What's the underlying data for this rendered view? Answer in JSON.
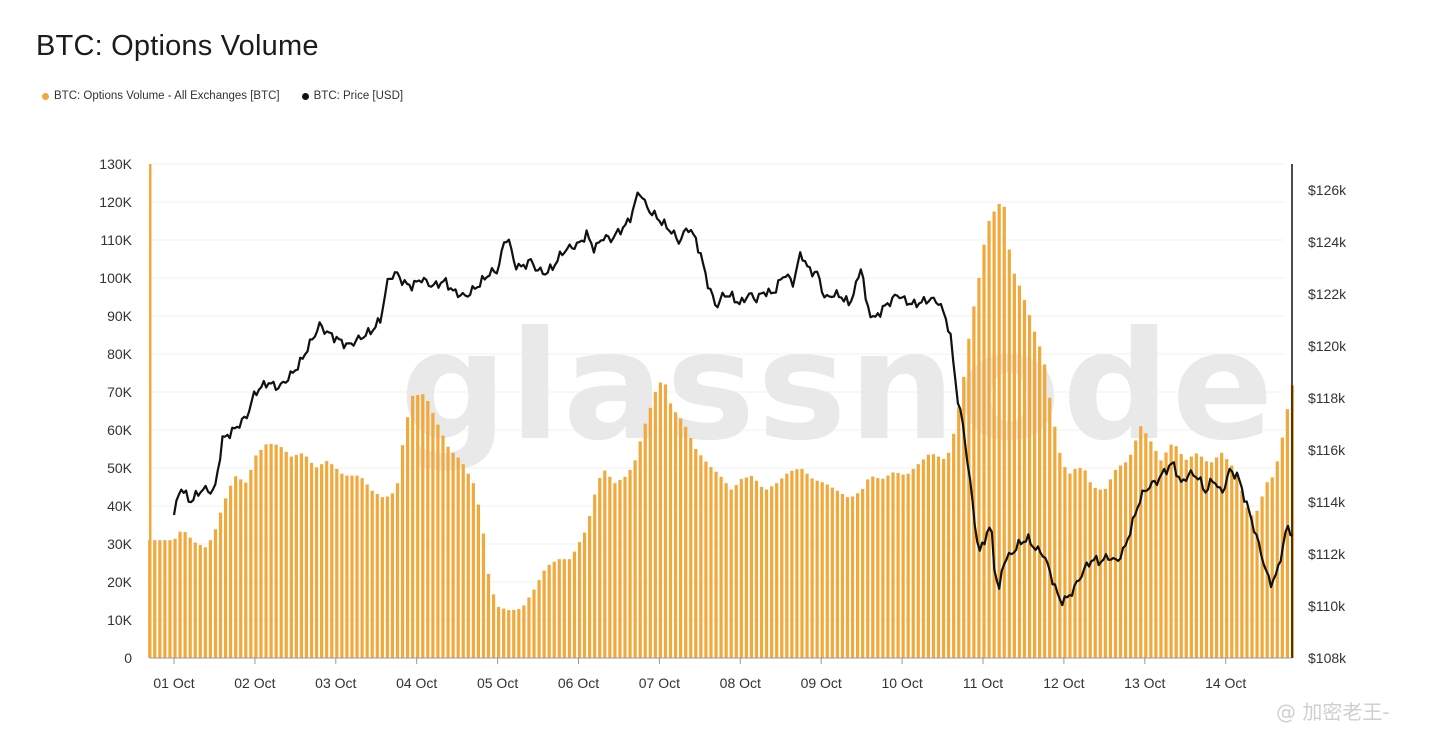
{
  "title": "BTC: Options Volume",
  "legend": [
    {
      "label": "BTC: Options Volume - All Exchanges [BTC]",
      "color": "#f0a93a"
    },
    {
      "label": "BTC: Price [USD]",
      "color": "#111111"
    }
  ],
  "watermark": "glassnode",
  "credit": "@ 加密老王-",
  "chart_data": {
    "type": "bar",
    "title": "BTC: Options Volume",
    "x_ticks": [
      "01 Oct",
      "02 Oct",
      "03 Oct",
      "04 Oct",
      "05 Oct",
      "06 Oct",
      "07 Oct",
      "08 Oct",
      "09 Oct",
      "10 Oct",
      "11 Oct",
      "12 Oct",
      "13 Oct",
      "14 Oct"
    ],
    "y_left_ticks": [
      "0",
      "10K",
      "20K",
      "30K",
      "40K",
      "50K",
      "60K",
      "70K",
      "80K",
      "90K",
      "100K",
      "110K",
      "120K",
      "130K"
    ],
    "y_right_ticks": [
      "$108k",
      "$110k",
      "$112k",
      "$114k",
      "$116k",
      "$118k",
      "$120k",
      "$122k",
      "$124k",
      "$126k"
    ],
    "y_left_range": [
      0,
      130000
    ],
    "y_right_range": [
      108000,
      127000
    ],
    "grid": true,
    "legend_position": "top-left",
    "series": [
      {
        "name": "BTC: Options Volume - All Exchanges [BTC]",
        "axis": "left",
        "style": "bar",
        "color": "#f0a93a",
        "points": [
          [
            0.0,
            31000
          ],
          [
            0.1,
            34000
          ],
          [
            0.25,
            30500
          ],
          [
            0.4,
            29000
          ],
          [
            0.5,
            33000
          ],
          [
            0.6,
            40000
          ],
          [
            0.75,
            48000
          ],
          [
            0.9,
            46000
          ],
          [
            1.0,
            53000
          ],
          [
            1.15,
            56500
          ],
          [
            1.3,
            56000
          ],
          [
            1.45,
            53000
          ],
          [
            1.6,
            54000
          ],
          [
            1.75,
            50000
          ],
          [
            1.9,
            52000
          ],
          [
            2.1,
            48000
          ],
          [
            2.3,
            48000
          ],
          [
            2.45,
            44000
          ],
          [
            2.6,
            42000
          ],
          [
            2.75,
            44000
          ],
          [
            2.85,
            60000
          ],
          [
            2.95,
            69000
          ],
          [
            3.1,
            69500
          ],
          [
            3.25,
            62000
          ],
          [
            3.4,
            55000
          ],
          [
            3.55,
            52000
          ],
          [
            3.7,
            46000
          ],
          [
            3.8,
            37000
          ],
          [
            3.9,
            20000
          ],
          [
            4.0,
            13500
          ],
          [
            4.15,
            12500
          ],
          [
            4.3,
            13000
          ],
          [
            4.45,
            18000
          ],
          [
            4.6,
            24000
          ],
          [
            4.75,
            26000
          ],
          [
            4.9,
            26000
          ],
          [
            5.0,
            30000
          ],
          [
            5.1,
            34000
          ],
          [
            5.2,
            43000
          ],
          [
            5.3,
            50000
          ],
          [
            5.45,
            46000
          ],
          [
            5.6,
            48000
          ],
          [
            5.7,
            52000
          ],
          [
            5.8,
            60000
          ],
          [
            5.95,
            70000
          ],
          [
            6.05,
            74000
          ],
          [
            6.15,
            66000
          ],
          [
            6.3,
            62000
          ],
          [
            6.45,
            55000
          ],
          [
            6.6,
            51000
          ],
          [
            6.75,
            48000
          ],
          [
            6.9,
            44000
          ],
          [
            7.0,
            47000
          ],
          [
            7.15,
            48000
          ],
          [
            7.3,
            44000
          ],
          [
            7.45,
            46000
          ],
          [
            7.6,
            49000
          ],
          [
            7.75,
            50000
          ],
          [
            7.9,
            47000
          ],
          [
            8.05,
            46000
          ],
          [
            8.2,
            44000
          ],
          [
            8.35,
            42000
          ],
          [
            8.5,
            44000
          ],
          [
            8.6,
            48000
          ],
          [
            8.75,
            47000
          ],
          [
            8.9,
            49000
          ],
          [
            9.05,
            48000
          ],
          [
            9.2,
            51000
          ],
          [
            9.35,
            54000
          ],
          [
            9.45,
            53000
          ],
          [
            9.55,
            52000
          ],
          [
            9.65,
            60000
          ],
          [
            9.75,
            72000
          ],
          [
            9.85,
            88000
          ],
          [
            9.95,
            100000
          ],
          [
            10.05,
            114000
          ],
          [
            10.15,
            118000
          ],
          [
            10.25,
            121000
          ],
          [
            10.35,
            103000
          ],
          [
            10.45,
            98000
          ],
          [
            10.55,
            92000
          ],
          [
            10.65,
            85000
          ],
          [
            10.75,
            79000
          ],
          [
            10.85,
            65000
          ],
          [
            10.95,
            54000
          ],
          [
            11.05,
            48000
          ],
          [
            11.15,
            50000
          ],
          [
            11.25,
            50000
          ],
          [
            11.35,
            45000
          ],
          [
            11.5,
            44000
          ],
          [
            11.65,
            50000
          ],
          [
            11.8,
            52000
          ],
          [
            11.95,
            61000
          ],
          [
            12.05,
            58000
          ],
          [
            12.2,
            52000
          ],
          [
            12.35,
            57000
          ],
          [
            12.5,
            52000
          ],
          [
            12.65,
            54000
          ],
          [
            12.8,
            51000
          ],
          [
            12.95,
            54000
          ],
          [
            13.1,
            50000
          ],
          [
            13.2,
            44000
          ],
          [
            13.3,
            37000
          ],
          [
            13.4,
            39000
          ],
          [
            13.5,
            46000
          ],
          [
            13.6,
            48000
          ],
          [
            13.7,
            58000
          ],
          [
            13.8,
            70000
          ],
          [
            13.85,
            73500
          ]
        ]
      },
      {
        "name": "BTC: Price [USD]",
        "axis": "right",
        "style": "line",
        "color": "#111111",
        "points": [
          [
            0.0,
            113500
          ],
          [
            0.08,
            114600
          ],
          [
            0.2,
            114000
          ],
          [
            0.35,
            114500
          ],
          [
            0.5,
            114400
          ],
          [
            0.6,
            116400
          ],
          [
            0.75,
            116800
          ],
          [
            0.9,
            117300
          ],
          [
            1.0,
            118200
          ],
          [
            1.15,
            118600
          ],
          [
            1.3,
            118400
          ],
          [
            1.45,
            118900
          ],
          [
            1.55,
            119300
          ],
          [
            1.7,
            120200
          ],
          [
            1.8,
            120800
          ],
          [
            1.9,
            120500
          ],
          [
            2.0,
            120300
          ],
          [
            2.15,
            120000
          ],
          [
            2.3,
            120300
          ],
          [
            2.45,
            120600
          ],
          [
            2.55,
            121000
          ],
          [
            2.65,
            122600
          ],
          [
            2.75,
            122800
          ],
          [
            2.85,
            122400
          ],
          [
            2.95,
            122300
          ],
          [
            3.05,
            122600
          ],
          [
            3.2,
            122300
          ],
          [
            3.35,
            122500
          ],
          [
            3.45,
            122100
          ],
          [
            3.6,
            121900
          ],
          [
            3.75,
            122300
          ],
          [
            3.9,
            122800
          ],
          [
            4.0,
            122900
          ],
          [
            4.1,
            124200
          ],
          [
            4.15,
            124000
          ],
          [
            4.2,
            123200
          ],
          [
            4.3,
            123000
          ],
          [
            4.4,
            123300
          ],
          [
            4.5,
            122900
          ],
          [
            4.6,
            122800
          ],
          [
            4.7,
            123100
          ],
          [
            4.8,
            123600
          ],
          [
            4.9,
            123800
          ],
          [
            5.0,
            123900
          ],
          [
            5.1,
            124300
          ],
          [
            5.2,
            123700
          ],
          [
            5.3,
            124200
          ],
          [
            5.4,
            124100
          ],
          [
            5.5,
            124400
          ],
          [
            5.6,
            124700
          ],
          [
            5.65,
            125000
          ],
          [
            5.75,
            126000
          ],
          [
            5.85,
            125300
          ],
          [
            5.95,
            125000
          ],
          [
            6.05,
            124700
          ],
          [
            6.15,
            124400
          ],
          [
            6.25,
            124000
          ],
          [
            6.35,
            124600
          ],
          [
            6.45,
            124100
          ],
          [
            6.5,
            123600
          ],
          [
            6.6,
            122400
          ],
          [
            6.7,
            121500
          ],
          [
            6.8,
            122000
          ],
          [
            6.9,
            121900
          ],
          [
            7.0,
            121600
          ],
          [
            7.1,
            122000
          ],
          [
            7.2,
            121800
          ],
          [
            7.3,
            122100
          ],
          [
            7.4,
            122000
          ],
          [
            7.55,
            122800
          ],
          [
            7.65,
            122400
          ],
          [
            7.75,
            123600
          ],
          [
            7.85,
            122900
          ],
          [
            7.95,
            122800
          ],
          [
            8.05,
            121800
          ],
          [
            8.15,
            122000
          ],
          [
            8.25,
            121900
          ],
          [
            8.35,
            121600
          ],
          [
            8.45,
            122500
          ],
          [
            8.5,
            123200
          ],
          [
            8.55,
            121700
          ],
          [
            8.65,
            121000
          ],
          [
            8.75,
            121400
          ],
          [
            8.85,
            121700
          ],
          [
            8.95,
            122000
          ],
          [
            9.05,
            121700
          ],
          [
            9.15,
            121600
          ],
          [
            9.25,
            121700
          ],
          [
            9.35,
            121800
          ],
          [
            9.45,
            121700
          ],
          [
            9.55,
            121000
          ],
          [
            9.6,
            120300
          ],
          [
            9.65,
            118900
          ],
          [
            9.7,
            117700
          ],
          [
            9.75,
            117000
          ],
          [
            9.8,
            115800
          ],
          [
            9.85,
            114500
          ],
          [
            9.9,
            113200
          ],
          [
            9.95,
            112000
          ],
          [
            10.05,
            112800
          ],
          [
            10.1,
            113100
          ],
          [
            10.15,
            111200
          ],
          [
            10.2,
            110600
          ],
          [
            10.25,
            111700
          ],
          [
            10.35,
            112000
          ],
          [
            10.45,
            112400
          ],
          [
            10.55,
            112600
          ],
          [
            10.65,
            112200
          ],
          [
            10.75,
            112000
          ],
          [
            10.85,
            111100
          ],
          [
            10.95,
            110200
          ],
          [
            11.05,
            110300
          ],
          [
            11.15,
            110800
          ],
          [
            11.25,
            111400
          ],
          [
            11.35,
            111800
          ],
          [
            11.45,
            111700
          ],
          [
            11.55,
            111900
          ],
          [
            11.65,
            111700
          ],
          [
            11.75,
            112200
          ],
          [
            11.85,
            113200
          ],
          [
            11.95,
            114200
          ],
          [
            12.05,
            114600
          ],
          [
            12.15,
            114800
          ],
          [
            12.25,
            115200
          ],
          [
            12.35,
            115500
          ],
          [
            12.45,
            114700
          ],
          [
            12.55,
            115100
          ],
          [
            12.65,
            115000
          ],
          [
            12.75,
            114400
          ],
          [
            12.85,
            114900
          ],
          [
            12.95,
            114300
          ],
          [
            13.05,
            115200
          ],
          [
            13.15,
            115000
          ],
          [
            13.25,
            114000
          ],
          [
            13.35,
            113000
          ],
          [
            13.45,
            111900
          ],
          [
            13.55,
            110800
          ],
          [
            13.65,
            111400
          ],
          [
            13.75,
            113000
          ],
          [
            13.85,
            112700
          ]
        ]
      }
    ]
  }
}
